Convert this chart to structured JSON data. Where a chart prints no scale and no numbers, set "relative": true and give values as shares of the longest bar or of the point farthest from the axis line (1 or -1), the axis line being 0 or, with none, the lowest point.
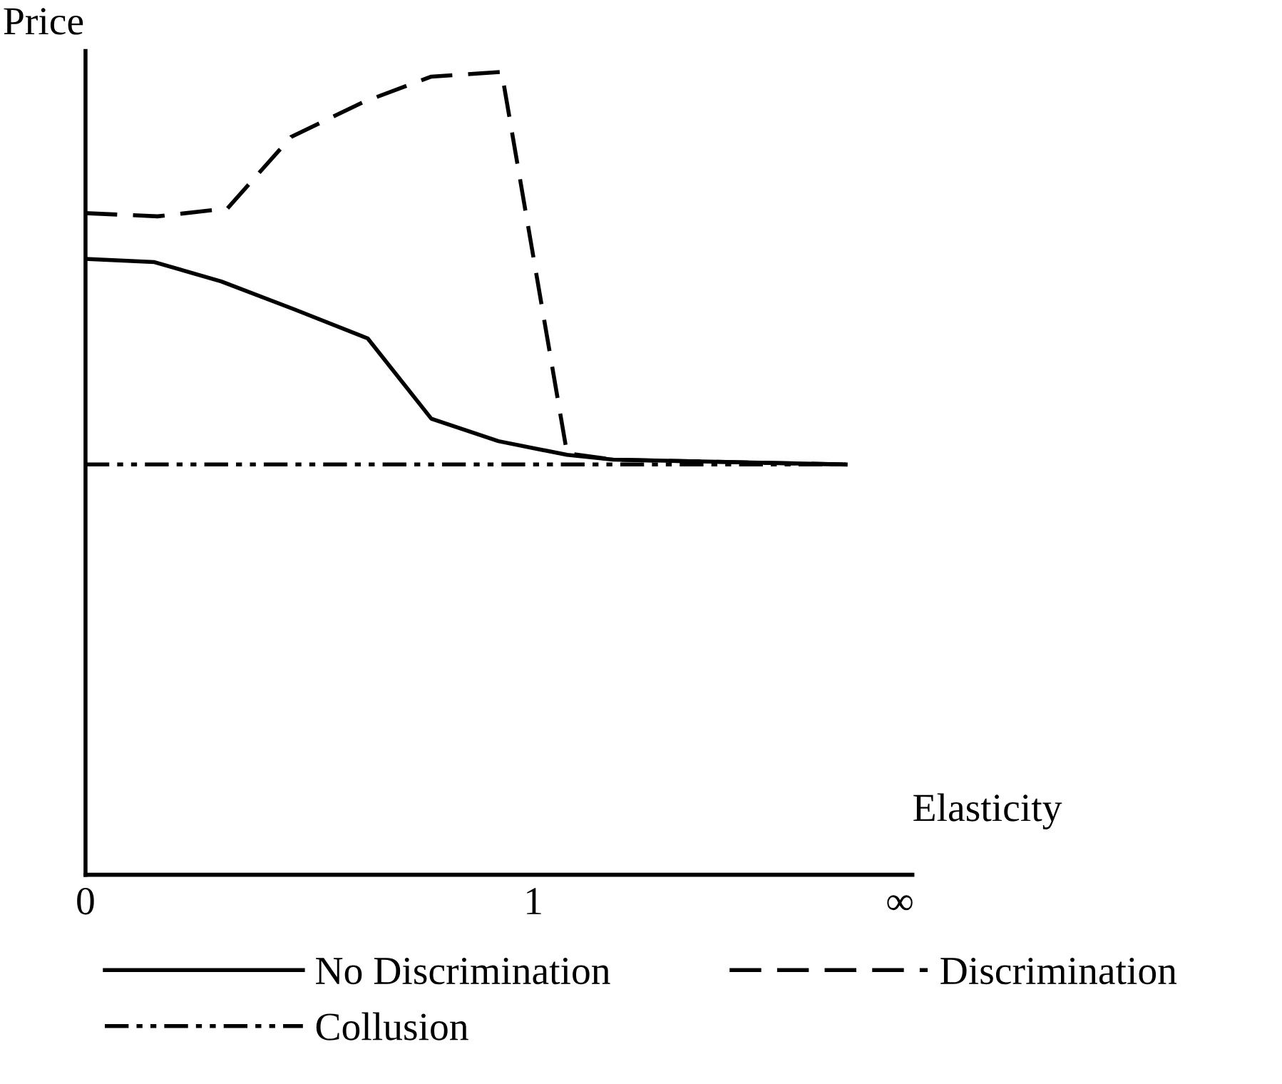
{
  "chart_data": {
    "type": "line",
    "relative": true,
    "xlabel": "Elasticity",
    "ylabel": "Price",
    "xlim": [
      0,
      1.846
    ],
    "xticks": [
      0,
      1,
      {
        "value": 1.818,
        "label": "∞"
      }
    ],
    "legend": "bottom",
    "tick_labels": "x",
    "series": [
      {
        "name": "No Discrimination",
        "color": "#000000",
        "line_style": "solid",
        "x": [
          0,
          0.154,
          0.303,
          0.467,
          0.63,
          0.772,
          0.922,
          1.075,
          1.178,
          1.697
        ],
        "values": [
          0.767,
          0.763,
          0.739,
          0.704,
          0.668,
          0.568,
          0.54,
          0.523,
          0.517,
          0.511
        ]
      },
      {
        "name": "Discrimination",
        "color": "#000000",
        "line_style": "dashed",
        "x": [
          0,
          0.161,
          0.317,
          0.459,
          0.623,
          0.772,
          0.929,
          1.075,
          1.178,
          1.697
        ],
        "values": [
          0.824,
          0.82,
          0.83,
          0.919,
          0.963,
          0.994,
          1.0,
          0.525,
          0.517,
          0.511
        ]
      },
      {
        "name": "Collusion",
        "color": "#000000",
        "line_style": "dashdot",
        "x": [
          0,
          1.697
        ],
        "values": [
          0.511,
          0.511
        ]
      }
    ]
  }
}
